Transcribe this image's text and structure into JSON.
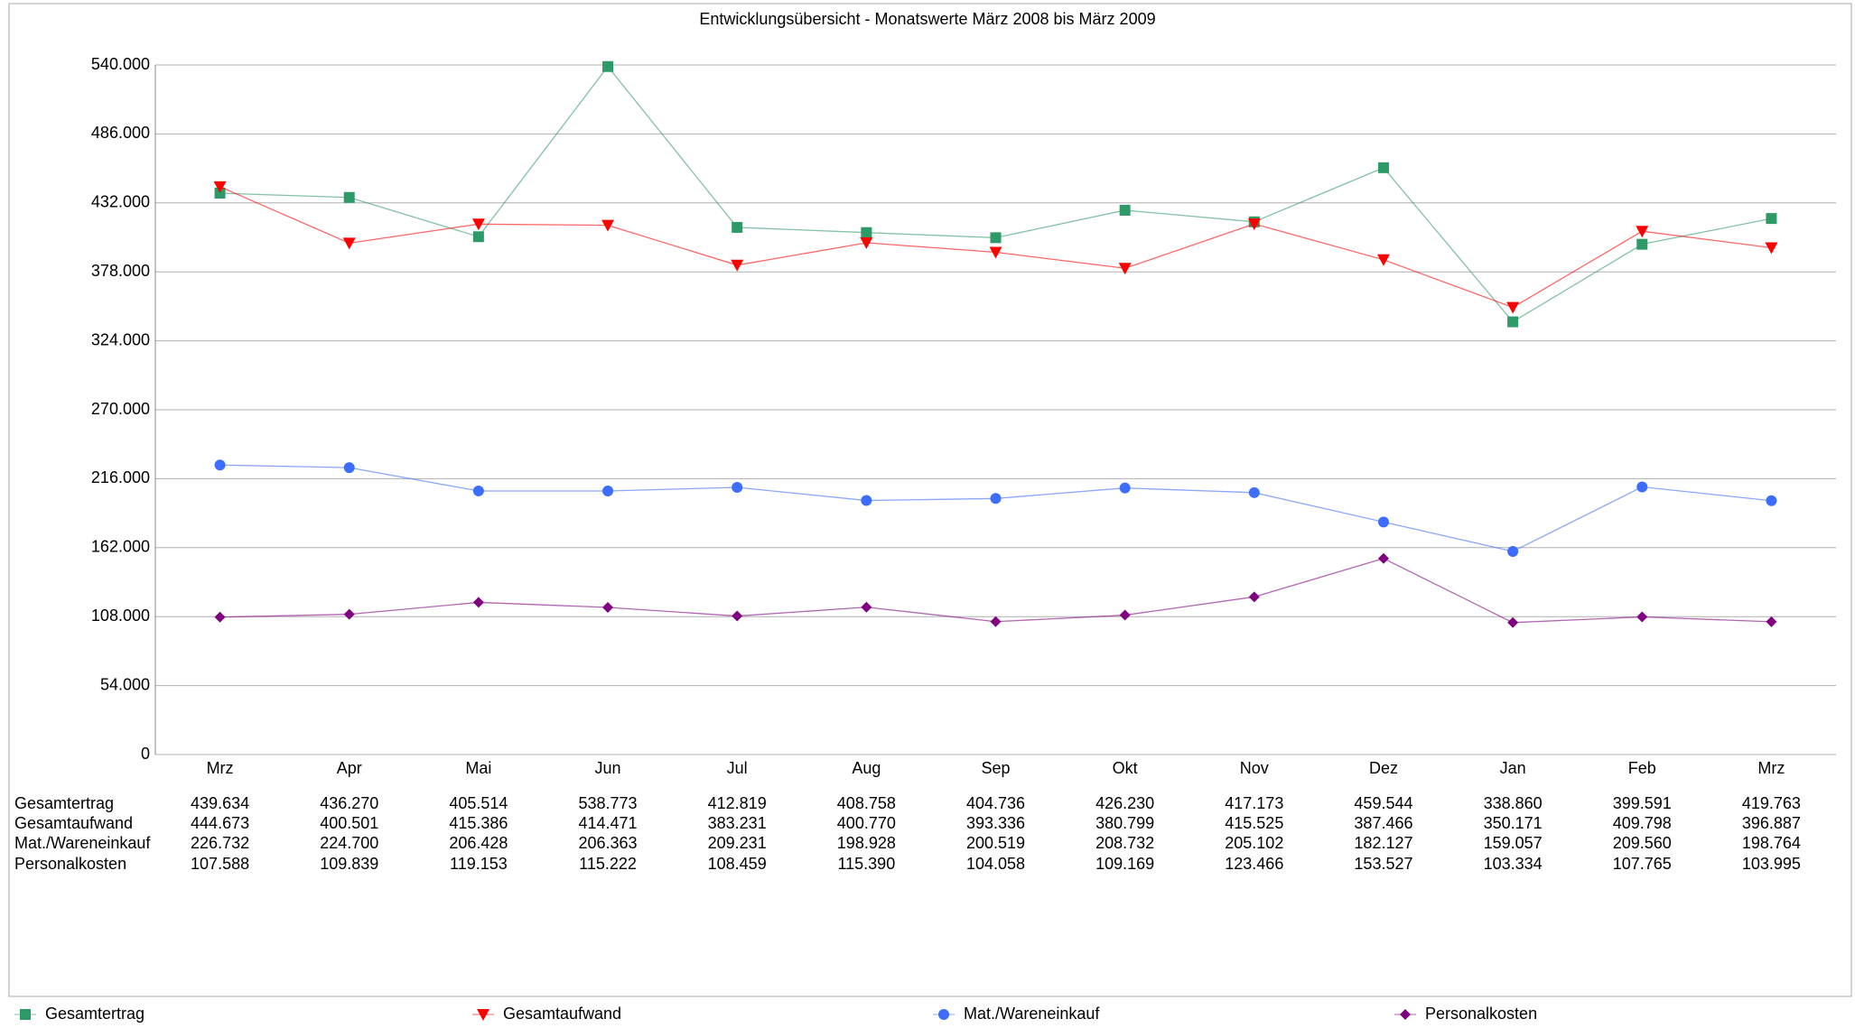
{
  "chart_data": {
    "type": "line",
    "title": "Entwicklungsübersicht - Monatswerte März 2008 bis März 2009",
    "categories": [
      "Mrz",
      "Apr",
      "Mai",
      "Jun",
      "Jul",
      "Aug",
      "Sep",
      "Okt",
      "Nov",
      "Dez",
      "Jan",
      "Feb",
      "Mrz"
    ],
    "series": [
      {
        "name": "Gesamtertrag",
        "color": "#2e9a68",
        "marker": "square",
        "values": [
          439634,
          436270,
          405514,
          538773,
          412819,
          408758,
          404736,
          426230,
          417173,
          459544,
          338860,
          399591,
          419763
        ],
        "value_labels": [
          "439.634",
          "436.270",
          "405.514",
          "538.773",
          "412.819",
          "408.758",
          "404.736",
          "426.230",
          "417.173",
          "459.544",
          "338.860",
          "399.591",
          "419.763"
        ]
      },
      {
        "name": "Gesamtaufwand",
        "color": "#ff0000",
        "marker": "triangle-down",
        "values": [
          444673,
          400501,
          415386,
          414471,
          383231,
          400770,
          393336,
          380799,
          415525,
          387466,
          350171,
          409798,
          396887
        ],
        "value_labels": [
          "444.673",
          "400.501",
          "415.386",
          "414.471",
          "383.231",
          "400.770",
          "393.336",
          "380.799",
          "415.525",
          "387.466",
          "350.171",
          "409.798",
          "396.887"
        ]
      },
      {
        "name": "Mat./Wareneinkauf",
        "color": "#3d6dff",
        "marker": "circle",
        "values": [
          226732,
          224700,
          206428,
          206363,
          209231,
          198928,
          200519,
          208732,
          205102,
          182127,
          159057,
          209560,
          198764
        ],
        "value_labels": [
          "226.732",
          "224.700",
          "206.428",
          "206.363",
          "209.231",
          "198.928",
          "200.519",
          "208.732",
          "205.102",
          "182.127",
          "159.057",
          "209.560",
          "198.764"
        ]
      },
      {
        "name": "Personalkosten",
        "color": "#800080",
        "marker": "diamond",
        "values": [
          107588,
          109839,
          119153,
          115222,
          108459,
          115390,
          104058,
          109169,
          123466,
          153527,
          103334,
          107765,
          103995
        ],
        "value_labels": [
          "107.588",
          "109.839",
          "119.153",
          "115.222",
          "108.459",
          "115.390",
          "104.058",
          "109.169",
          "123.466",
          "153.527",
          "103.334",
          "107.765",
          "103.995"
        ]
      }
    ],
    "ylim": [
      0,
      540000
    ],
    "yticks": [
      0,
      {
        "value": 54000,
        "label": "54.000"
      },
      {
        "value": 108000,
        "label": "108.000"
      },
      {
        "value": 162000,
        "label": "162.000"
      },
      {
        "value": 216000,
        "label": "216.000"
      },
      {
        "value": 270000,
        "label": "270.000"
      },
      {
        "value": 324000,
        "label": "324.000"
      },
      {
        "value": 378000,
        "label": "378.000"
      },
      {
        "value": 432000,
        "label": "432.000"
      },
      {
        "value": 486000,
        "label": "486.000"
      },
      {
        "value": 540000,
        "label": "540.000"
      }
    ],
    "grid": true,
    "legend": "bottom"
  }
}
